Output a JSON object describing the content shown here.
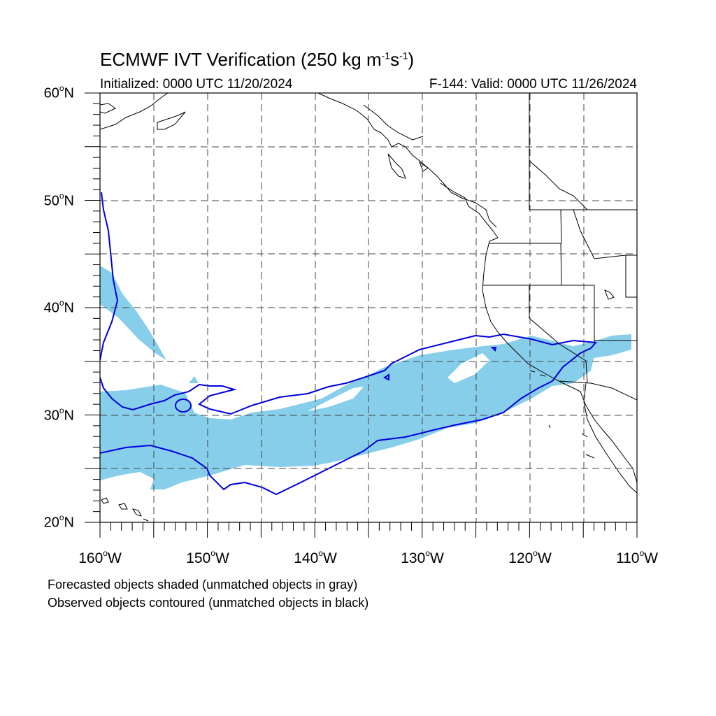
{
  "title": {
    "main": "ECMWF IVT Verification (250 kg m",
    "exp1": "-1",
    "mid": "s",
    "exp2": "-1",
    "close": ")"
  },
  "subtitle": {
    "left": "Initialized: 0000 UTC 11/20/2024",
    "right": "F-144: Valid: 0000 UTC 11/26/2024"
  },
  "map": {
    "lon_range": [
      -160,
      -110
    ],
    "lat_range": [
      20,
      60
    ],
    "grid_lon_step": 5,
    "grid_lat_step": 5,
    "forecast_color": "#87ceeb",
    "observed_color": "#0000dd",
    "coast_color": "#000000",
    "lat_labels": [
      {
        "deg": "20",
        "hemi": "N"
      },
      {
        "deg": "30",
        "hemi": "N"
      },
      {
        "deg": "40",
        "hemi": "N"
      },
      {
        "deg": "50",
        "hemi": "N"
      },
      {
        "deg": "60",
        "hemi": "N"
      }
    ],
    "lon_labels": [
      {
        "deg": "160",
        "hemi": "W"
      },
      {
        "deg": "150",
        "hemi": "W"
      },
      {
        "deg": "140",
        "hemi": "W"
      },
      {
        "deg": "130",
        "hemi": "W"
      },
      {
        "deg": "120",
        "hemi": "W"
      },
      {
        "deg": "110",
        "hemi": "W"
      }
    ]
  },
  "notes": {
    "line1": "Forecasted objects shaded (unmatched objects in gray)",
    "line2": "Observed objects contoured (unmatched objects in black)"
  }
}
